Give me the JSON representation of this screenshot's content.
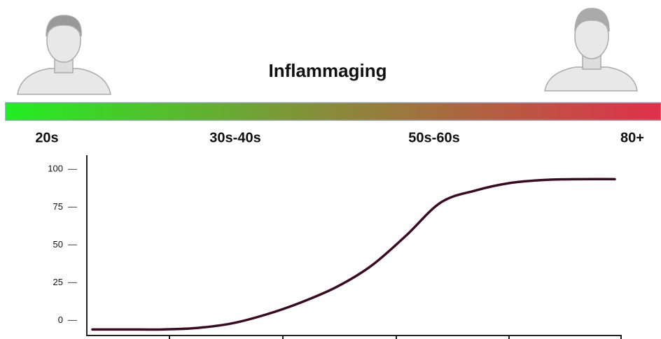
{
  "chart_data": {
    "type": "line",
    "title": "Inflammaging",
    "age_labels": [
      "20s",
      "30s-40s",
      "50s-60s",
      "80+"
    ],
    "gradient_colors": [
      "#22ee22",
      "#8a8a3a",
      "#e0304a"
    ],
    "categories": [
      null,
      null,
      null,
      null,
      null,
      null,
      null,
      null,
      null,
      null,
      null,
      null,
      null,
      null,
      null,
      null
    ],
    "values": [
      -6,
      -6,
      -6,
      -5,
      -2,
      4,
      12,
      22,
      36,
      56,
      78,
      86,
      91,
      93,
      93.5,
      93.5
    ],
    "color": "#3a0a22",
    "ylim": [
      -10,
      108
    ],
    "yticks": [
      0,
      25,
      50,
      75,
      100
    ]
  }
}
